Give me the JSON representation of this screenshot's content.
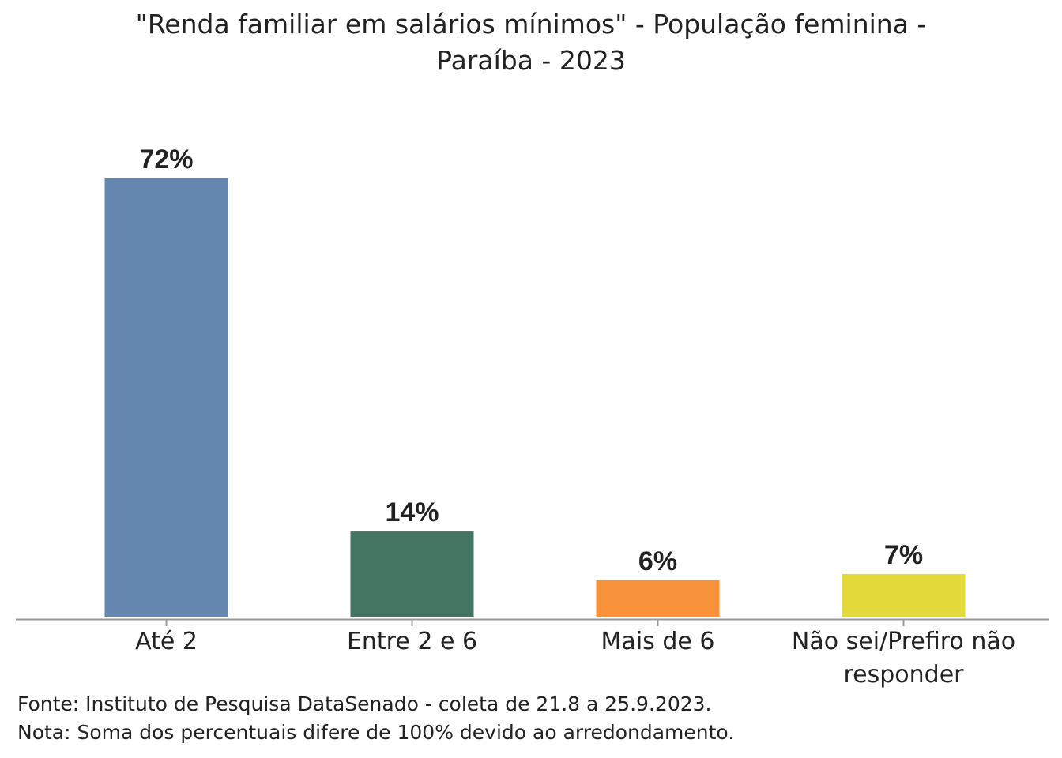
{
  "chart_data": {
    "type": "bar",
    "title_lines": [
      "\"Renda familiar em salários mínimos\" - População feminina -",
      "Paraíba - 2023"
    ],
    "categories": [
      [
        "Até 2"
      ],
      [
        "Entre 2 e 6"
      ],
      [
        "Mais de 6"
      ],
      [
        "Não sei/Prefiro não",
        "responder"
      ]
    ],
    "values": [
      72,
      14,
      6,
      7
    ],
    "value_labels": [
      "72%",
      "14%",
      "6%",
      "7%"
    ],
    "colors": [
      "#6688b0",
      "#447562",
      "#f7913a",
      "#e4d93a"
    ],
    "ylim": [
      0,
      72
    ],
    "grid": false,
    "legend": "none"
  },
  "footer": {
    "source": "Fonte: Instituto de Pesquisa DataSenado - coleta de 21.8 a 25.9.2023.",
    "note": "Nota: Soma dos percentuais difere de 100% devido ao arredondamento."
  }
}
